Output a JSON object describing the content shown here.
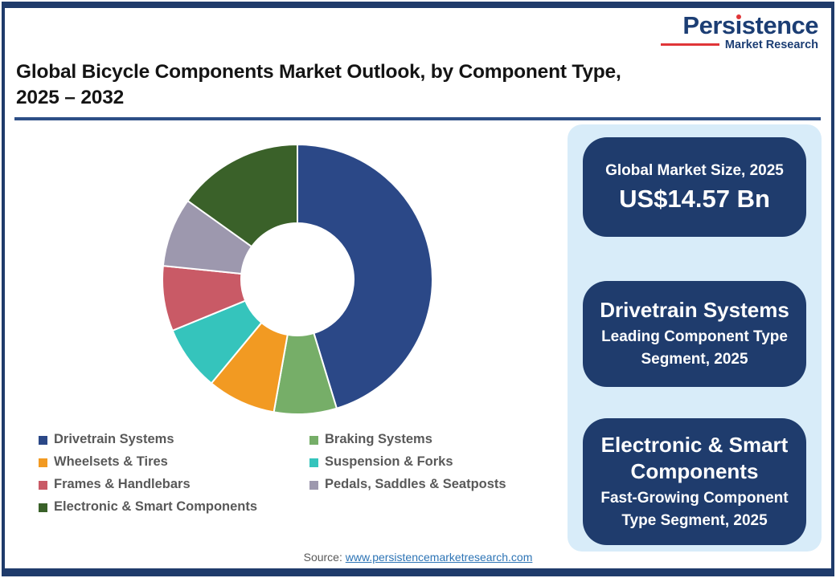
{
  "brand": {
    "name_pre": "Pers",
    "name_i": "ı",
    "name_post": "stence",
    "tagline": "Market Research"
  },
  "header": {
    "title_line1": "Global Bicycle Components Market Outlook, by Component Type,",
    "title_line2": "2025 – 2032"
  },
  "chart_data": {
    "type": "pie",
    "subtype": "donut",
    "title": "Global Bicycle Components Market Outlook, by Component Type, 2025 – 2032",
    "start_angle_deg": 0,
    "direction": "clockwise",
    "unit": "percent share (estimated from arc angles)",
    "inner_radius_ratio": 0.42,
    "legend_position": "bottom-left, two columns",
    "series": [
      {
        "name": "Drivetrain Systems",
        "value": 45.3,
        "color": "#2b4887"
      },
      {
        "name": "Braking Systems",
        "value": 7.5,
        "color": "#76ae68"
      },
      {
        "name": "Wheelsets & Tires",
        "value": 8.2,
        "color": "#f29a22"
      },
      {
        "name": "Suspension & Forks",
        "value": 7.8,
        "color": "#35c4bc"
      },
      {
        "name": "Frames & Handlebars",
        "value": 7.8,
        "color": "#c95a66"
      },
      {
        "name": "Pedals, Saddles & Seatposts",
        "value": 8.3,
        "color": "#9d98ae"
      },
      {
        "name": "Electronic & Smart Components",
        "value": 15.1,
        "color": "#3a6129"
      }
    ]
  },
  "panel": {
    "bg": "#d8ecf9",
    "card_bg": "#1f3c6d",
    "cards": [
      {
        "title": "Global Market Size, 2025",
        "value": "US$14.57 Bn"
      },
      {
        "title": "Drivetrain Systems",
        "subtitle": "Leading Component Type Segment, 2025"
      },
      {
        "title": "Electronic & Smart Components",
        "subtitle": "Fast-Growing Component Type Segment, 2025"
      }
    ]
  },
  "footer": {
    "source_label": "Source:",
    "source_link": "www.persistencemarketresearch.com"
  }
}
